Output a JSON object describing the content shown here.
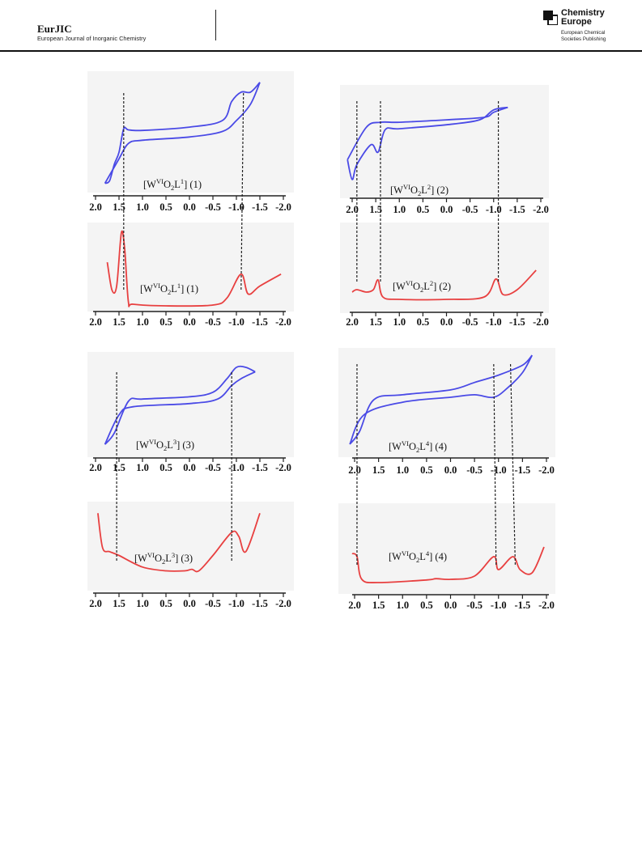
{
  "header": {
    "journal_abbr": "EurJIC",
    "journal_full": "European Journal of Inorganic Chemistry",
    "publisher_line1": "Chemistry",
    "publisher_line2": "Europe",
    "publisher_sub1": "European Chemical",
    "publisher_sub2": "Societies Publishing"
  },
  "colors": {
    "cv_trace": "#4a4ae6",
    "dpv_trace": "#e84040",
    "panel_bg": "#f4f4f4",
    "rule": "#111111"
  },
  "chart_data": [
    {
      "type": "line",
      "label": "[W^VI O_2 L^1] (1)",
      "label_parts": [
        "[W",
        "VI",
        "O",
        "2",
        "L",
        "1",
        "] (1)"
      ],
      "xlim": [
        2.0,
        -2.0
      ],
      "xticks": [
        "2.0",
        "1.5",
        "1.0",
        "0.5",
        "0.0",
        "-0.5",
        "-1.0",
        "-1.5",
        "-2.0"
      ],
      "cv_peaks": [
        1.4,
        -1.15
      ],
      "dpv_peaks": [
        1.4,
        -1.1
      ],
      "series": [
        {
          "values_top": [
            [
              1.8,
              -0.95
            ],
            [
              1.7,
              -0.9
            ],
            [
              1.6,
              -0.6
            ],
            [
              1.5,
              -0.38
            ],
            [
              1.4,
              0.05
            ],
            [
              1.3,
              0.03
            ],
            [
              1.0,
              0.02
            ],
            [
              0.0,
              0.08
            ],
            [
              -0.7,
              0.2
            ],
            [
              -0.9,
              0.55
            ],
            [
              -1.1,
              0.72
            ],
            [
              -1.3,
              0.72
            ],
            [
              -1.5,
              0.9
            ]
          ],
          "values_bottom": [
            [
              1.8,
              -0.95
            ],
            [
              1.5,
              -0.5
            ],
            [
              1.3,
              -0.22
            ],
            [
              1.0,
              -0.16
            ],
            [
              0.0,
              -0.1
            ],
            [
              -0.7,
              0.0
            ],
            [
              -1.0,
              0.2
            ],
            [
              -1.3,
              0.5
            ],
            [
              -1.5,
              0.9
            ]
          ]
        }
      ],
      "dpv": [
        [
          1.75,
          0.55
        ],
        [
          1.65,
          0.2
        ],
        [
          1.55,
          0.25
        ],
        [
          1.45,
          0.92
        ],
        [
          1.38,
          0.72
        ],
        [
          1.3,
          0.05
        ],
        [
          1.2,
          0.02
        ],
        [
          0.5,
          0.0
        ],
        [
          -0.5,
          0.01
        ],
        [
          -0.8,
          0.1
        ],
        [
          -1.1,
          0.4
        ],
        [
          -1.25,
          0.15
        ],
        [
          -1.5,
          0.25
        ],
        [
          -1.95,
          0.4
        ]
      ]
    },
    {
      "type": "line",
      "label": "[W^VI O_2 L^2] (2)",
      "label_parts": [
        "[W",
        "VI",
        "O",
        "2",
        "L",
        "2",
        "] (2)"
      ],
      "xlim": [
        2.0,
        -2.0
      ],
      "xticks": [
        "2.0",
        "1.5",
        "1.0",
        "0.5",
        "0.0",
        "-0.5",
        "-1.0",
        "-1.5",
        "-2.0"
      ],
      "cv_peaks": [
        1.9,
        1.4,
        -1.1
      ],
      "dpv_peaks": [
        1.9,
        1.4,
        -1.1
      ],
      "series": [
        {
          "values_top": [
            [
              2.1,
              -0.5
            ],
            [
              2.0,
              -0.9
            ],
            [
              1.9,
              -0.6
            ],
            [
              1.6,
              -0.2
            ],
            [
              1.45,
              -0.35
            ],
            [
              1.3,
              0.1
            ],
            [
              1.0,
              0.12
            ],
            [
              0.0,
              0.2
            ],
            [
              -0.7,
              0.3
            ],
            [
              -1.0,
              0.5
            ],
            [
              -1.3,
              0.55
            ]
          ],
          "values_bottom": [
            [
              2.1,
              -0.5
            ],
            [
              1.7,
              0.15
            ],
            [
              1.4,
              0.25
            ],
            [
              1.0,
              0.25
            ],
            [
              0.0,
              0.3
            ],
            [
              -0.8,
              0.35
            ],
            [
              -1.0,
              0.45
            ],
            [
              -1.3,
              0.55
            ]
          ]
        }
      ],
      "dpv": [
        [
          2.0,
          0.15
        ],
        [
          1.9,
          0.2
        ],
        [
          1.7,
          0.15
        ],
        [
          1.55,
          0.2
        ],
        [
          1.45,
          0.4
        ],
        [
          1.35,
          0.05
        ],
        [
          1.0,
          0.0
        ],
        [
          0.0,
          0.0
        ],
        [
          -0.8,
          0.05
        ],
        [
          -1.05,
          0.42
        ],
        [
          -1.2,
          0.1
        ],
        [
          -1.5,
          0.2
        ],
        [
          -1.9,
          0.6
        ]
      ]
    },
    {
      "type": "line",
      "label": "[W^VI O_2 L^3] (3)",
      "label_parts": [
        "[W",
        "VI",
        "O",
        "2",
        "L",
        "3",
        "] (3)"
      ],
      "xlim": [
        2.0,
        -2.0
      ],
      "xticks": [
        "2.0",
        "1.5",
        "1.0",
        "0.5",
        "0.0",
        "-0.5",
        "-1.0",
        "-1.5",
        "-2.0"
      ],
      "cv_peaks": [
        1.55,
        -0.9
      ],
      "dpv_peaks": [
        1.55,
        -0.9
      ],
      "series": [
        {
          "values_top": [
            [
              1.8,
              -0.95
            ],
            [
              1.6,
              -0.7
            ],
            [
              1.3,
              0.0
            ],
            [
              1.0,
              0.05
            ],
            [
              0.0,
              0.1
            ],
            [
              -0.5,
              0.2
            ],
            [
              -0.8,
              0.5
            ],
            [
              -1.0,
              0.75
            ],
            [
              -1.2,
              0.75
            ],
            [
              -1.4,
              0.65
            ]
          ],
          "values_bottom": [
            [
              1.8,
              -0.95
            ],
            [
              1.5,
              -0.3
            ],
            [
              1.2,
              -0.12
            ],
            [
              0.0,
              -0.05
            ],
            [
              -0.6,
              0.05
            ],
            [
              -0.9,
              0.35
            ],
            [
              -1.1,
              0.5
            ],
            [
              -1.4,
              0.65
            ]
          ]
        }
      ],
      "dpv": [
        [
          1.95,
          0.85
        ],
        [
          1.85,
          0.4
        ],
        [
          1.7,
          0.35
        ],
        [
          1.5,
          0.3
        ],
        [
          1.0,
          0.15
        ],
        [
          0.5,
          0.1
        ],
        [
          0.1,
          0.1
        ],
        [
          -0.05,
          0.12
        ],
        [
          -0.2,
          0.1
        ],
        [
          -0.5,
          0.3
        ],
        [
          -0.9,
          0.6
        ],
        [
          -1.05,
          0.55
        ],
        [
          -1.2,
          0.35
        ],
        [
          -1.5,
          0.85
        ]
      ]
    },
    {
      "type": "line",
      "label": "[W^VI O_2 L^4] (4)",
      "label_parts": [
        "[W",
        "VI",
        "O",
        "2",
        "L",
        "4",
        "] (4)"
      ],
      "xlim": [
        2.0,
        -2.0
      ],
      "xticks": [
        "2.0",
        "1.5",
        "1.0",
        "0.5",
        "0.0",
        "-0.5",
        "-1.0",
        "-1.5",
        "-2.0"
      ],
      "cv_peaks": [
        1.95,
        -0.9,
        -1.25
      ],
      "dpv_peaks": [
        1.95,
        -0.95,
        -1.35
      ],
      "series": [
        {
          "values_top": [
            [
              2.1,
              -0.95
            ],
            [
              1.9,
              -0.7
            ],
            [
              1.6,
              -0.05
            ],
            [
              1.0,
              0.05
            ],
            [
              0.0,
              0.15
            ],
            [
              -0.5,
              0.3
            ],
            [
              -1.0,
              0.45
            ],
            [
              -1.5,
              0.65
            ],
            [
              -1.7,
              0.85
            ]
          ],
          "values_bottom": [
            [
              2.1,
              -0.95
            ],
            [
              1.8,
              -0.35
            ],
            [
              1.0,
              -0.1
            ],
            [
              0.0,
              0.0
            ],
            [
              -0.5,
              0.05
            ],
            [
              -0.9,
              0.0
            ],
            [
              -1.2,
              0.2
            ],
            [
              -1.5,
              0.5
            ],
            [
              -1.7,
              0.85
            ]
          ]
        }
      ],
      "dpv": [
        [
          2.05,
          0.45
        ],
        [
          1.95,
          0.4
        ],
        [
          1.85,
          0.05
        ],
        [
          1.5,
          0.0
        ],
        [
          0.5,
          0.04
        ],
        [
          0.3,
          0.06
        ],
        [
          0.0,
          0.05
        ],
        [
          -0.5,
          0.1
        ],
        [
          -0.9,
          0.4
        ],
        [
          -1.0,
          0.2
        ],
        [
          -1.3,
          0.4
        ],
        [
          -1.45,
          0.2
        ],
        [
          -1.7,
          0.15
        ],
        [
          -1.95,
          0.55
        ]
      ]
    }
  ]
}
